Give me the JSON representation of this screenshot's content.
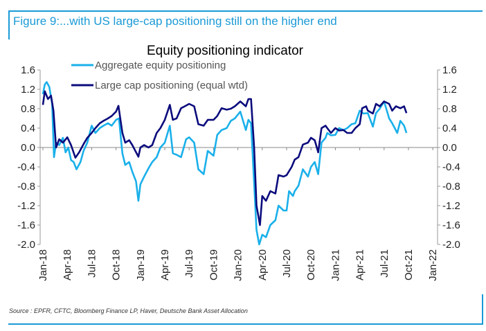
{
  "figure_title": "Figure 9:...with US large-cap positioning still on the higher end",
  "source": "Source : EPFR, CFTC, Bloomberg Finance LP, Haver, Deutsche Bank Asset Allocation",
  "chart_data": {
    "type": "line",
    "title": "Equity positioning indicator",
    "xlabel": "",
    "ylabel": "",
    "ylim": [
      -2.0,
      1.6
    ],
    "yticks": [
      "1.6",
      "1.2",
      "0.8",
      "0.4",
      "0.0",
      "-0.4",
      "-0.8",
      "-1.2",
      "-1.6",
      "-2.0"
    ],
    "ytick_values": [
      1.6,
      1.2,
      0.8,
      0.4,
      0.0,
      -0.4,
      -0.8,
      -1.2,
      -1.6,
      -2.0
    ],
    "xlim": [
      "2018-01-01",
      "2022-01-01"
    ],
    "xticks": [
      "Jan-18",
      "Apr-18",
      "Jul-18",
      "Oct-18",
      "Jan-19",
      "Apr-19",
      "Jul-19",
      "Oct-19",
      "Jan-20",
      "Apr-20",
      "Jul-20",
      "Oct-20",
      "Jan-21",
      "Apr-21",
      "Jul-21",
      "Oct-21",
      "Jan-22"
    ],
    "legend_position": "top-left",
    "grid": false,
    "series": [
      {
        "name": "Aggregate equity positioning",
        "color": "#1ab0ea",
        "points": [
          [
            "2018-01-01",
            1.1
          ],
          [
            "2018-01-08",
            1.3
          ],
          [
            "2018-01-15",
            1.35
          ],
          [
            "2018-01-25",
            1.25
          ],
          [
            "2018-02-05",
            0.9
          ],
          [
            "2018-02-12",
            -0.2
          ],
          [
            "2018-02-20",
            0.1
          ],
          [
            "2018-03-01",
            0.05
          ],
          [
            "2018-03-15",
            0.2
          ],
          [
            "2018-03-25",
            -0.1
          ],
          [
            "2018-04-05",
            0.0
          ],
          [
            "2018-04-15",
            -0.26
          ],
          [
            "2018-04-25",
            -0.3
          ],
          [
            "2018-05-05",
            -0.45
          ],
          [
            "2018-05-20",
            -0.3
          ],
          [
            "2018-06-01",
            -0.07
          ],
          [
            "2018-06-15",
            0.1
          ],
          [
            "2018-07-01",
            0.45
          ],
          [
            "2018-07-15",
            0.3
          ],
          [
            "2018-08-01",
            0.4
          ],
          [
            "2018-08-15",
            0.45
          ],
          [
            "2018-09-01",
            0.5
          ],
          [
            "2018-09-15",
            0.45
          ],
          [
            "2018-10-01",
            0.57
          ],
          [
            "2018-10-12",
            0.6
          ],
          [
            "2018-10-25",
            -0.12
          ],
          [
            "2018-11-05",
            -0.36
          ],
          [
            "2018-11-20",
            -0.3
          ],
          [
            "2018-12-01",
            -0.5
          ],
          [
            "2018-12-15",
            -0.7
          ],
          [
            "2018-12-24",
            -1.1
          ],
          [
            "2019-01-01",
            -0.76
          ],
          [
            "2019-01-15",
            -0.6
          ],
          [
            "2019-02-01",
            -0.43
          ],
          [
            "2019-02-15",
            -0.3
          ],
          [
            "2019-03-01",
            -0.2
          ],
          [
            "2019-03-15",
            0.0
          ],
          [
            "2019-04-01",
            0.1
          ],
          [
            "2019-04-20",
            0.45
          ],
          [
            "2019-05-01",
            -0.12
          ],
          [
            "2019-05-15",
            -0.15
          ],
          [
            "2019-06-01",
            -0.2
          ],
          [
            "2019-06-20",
            0.17
          ],
          [
            "2019-07-01",
            0.21
          ],
          [
            "2019-07-20",
            0.1
          ],
          [
            "2019-08-05",
            -0.45
          ],
          [
            "2019-08-25",
            -0.55
          ],
          [
            "2019-09-10",
            -0.07
          ],
          [
            "2019-10-01",
            -0.17
          ],
          [
            "2019-10-15",
            0.26
          ],
          [
            "2019-11-01",
            0.36
          ],
          [
            "2019-11-20",
            0.4
          ],
          [
            "2019-12-05",
            0.55
          ],
          [
            "2019-12-20",
            0.6
          ],
          [
            "2020-01-10",
            0.74
          ],
          [
            "2020-01-31",
            0.36
          ],
          [
            "2020-02-10",
            0.57
          ],
          [
            "2020-02-20",
            0.5
          ],
          [
            "2020-03-01",
            -0.74
          ],
          [
            "2020-03-10",
            -1.7
          ],
          [
            "2020-03-20",
            -2.0
          ],
          [
            "2020-04-01",
            -1.8
          ],
          [
            "2020-04-15",
            -1.85
          ],
          [
            "2020-05-01",
            -1.6
          ],
          [
            "2020-05-20",
            -1.5
          ],
          [
            "2020-06-01",
            -1.2
          ],
          [
            "2020-06-20",
            -1.3
          ],
          [
            "2020-07-01",
            -1.3
          ],
          [
            "2020-07-10",
            -0.9
          ],
          [
            "2020-07-25",
            -1.0
          ],
          [
            "2020-08-01",
            -0.9
          ],
          [
            "2020-08-15",
            -0.79
          ],
          [
            "2020-09-01",
            -0.45
          ],
          [
            "2020-09-20",
            -0.6
          ],
          [
            "2020-10-01",
            -0.4
          ],
          [
            "2020-10-15",
            -0.3
          ],
          [
            "2020-10-28",
            -0.55
          ],
          [
            "2020-11-10",
            0.1
          ],
          [
            "2020-11-25",
            0.2
          ],
          [
            "2020-12-01",
            0.3
          ],
          [
            "2020-12-15",
            0.25
          ],
          [
            "2021-01-01",
            0.26
          ],
          [
            "2021-01-15",
            0.4
          ],
          [
            "2021-02-01",
            0.36
          ],
          [
            "2021-02-15",
            0.4
          ],
          [
            "2021-03-01",
            0.48
          ],
          [
            "2021-03-15",
            0.5
          ],
          [
            "2021-04-01",
            0.76
          ],
          [
            "2021-04-15",
            0.7
          ],
          [
            "2021-05-01",
            0.71
          ],
          [
            "2021-05-20",
            0.43
          ],
          [
            "2021-06-01",
            0.71
          ],
          [
            "2021-06-15",
            0.8
          ],
          [
            "2021-07-01",
            0.95
          ],
          [
            "2021-07-20",
            0.6
          ],
          [
            "2021-08-01",
            0.5
          ],
          [
            "2021-08-20",
            0.3
          ],
          [
            "2021-09-01",
            0.55
          ],
          [
            "2021-09-15",
            0.45
          ],
          [
            "2021-09-24",
            0.3
          ]
        ]
      },
      {
        "name": "Large cap positioning (equal wtd)",
        "color": "#0b0b7d",
        "points": [
          [
            "2018-01-01",
            0.88
          ],
          [
            "2018-01-08",
            1.16
          ],
          [
            "2018-01-20",
            1.0
          ],
          [
            "2018-02-01",
            1.07
          ],
          [
            "2018-02-10",
            0.76
          ],
          [
            "2018-02-20",
            0.0
          ],
          [
            "2018-03-01",
            0.17
          ],
          [
            "2018-03-15",
            0.1
          ],
          [
            "2018-04-01",
            0.21
          ],
          [
            "2018-04-15",
            0.05
          ],
          [
            "2018-05-01",
            -0.21
          ],
          [
            "2018-05-15",
            -0.1
          ],
          [
            "2018-06-01",
            0.07
          ],
          [
            "2018-06-15",
            0.2
          ],
          [
            "2018-07-01",
            0.3
          ],
          [
            "2018-07-15",
            0.4
          ],
          [
            "2018-08-01",
            0.5
          ],
          [
            "2018-08-15",
            0.55
          ],
          [
            "2018-09-01",
            0.6
          ],
          [
            "2018-09-15",
            0.65
          ],
          [
            "2018-10-01",
            0.74
          ],
          [
            "2018-10-10",
            0.86
          ],
          [
            "2018-10-25",
            0.3
          ],
          [
            "2018-11-05",
            0.1
          ],
          [
            "2018-11-20",
            0.15
          ],
          [
            "2018-12-01",
            0.05
          ],
          [
            "2018-12-24",
            -0.19
          ],
          [
            "2019-01-01",
            0.0
          ],
          [
            "2019-01-15",
            0.05
          ],
          [
            "2019-02-01",
            0.0
          ],
          [
            "2019-02-15",
            0.05
          ],
          [
            "2019-03-01",
            0.3
          ],
          [
            "2019-03-15",
            0.4
          ],
          [
            "2019-04-01",
            0.57
          ],
          [
            "2019-04-20",
            0.88
          ],
          [
            "2019-05-01",
            0.57
          ],
          [
            "2019-05-15",
            0.6
          ],
          [
            "2019-06-01",
            0.81
          ],
          [
            "2019-06-15",
            0.85
          ],
          [
            "2019-07-01",
            0.9
          ],
          [
            "2019-07-20",
            0.85
          ],
          [
            "2019-08-05",
            0.48
          ],
          [
            "2019-08-25",
            0.45
          ],
          [
            "2019-09-10",
            0.57
          ],
          [
            "2019-10-01",
            0.57
          ],
          [
            "2019-10-15",
            0.65
          ],
          [
            "2019-11-01",
            0.81
          ],
          [
            "2019-11-20",
            0.78
          ],
          [
            "2019-12-05",
            0.8
          ],
          [
            "2019-12-20",
            0.85
          ],
          [
            "2020-01-10",
            0.95
          ],
          [
            "2020-01-31",
            0.85
          ],
          [
            "2020-02-10",
            1.0
          ],
          [
            "2020-02-20",
            1.0
          ],
          [
            "2020-03-01",
            0.0
          ],
          [
            "2020-03-10",
            -1.2
          ],
          [
            "2020-03-23",
            -1.6
          ],
          [
            "2020-04-01",
            -1.0
          ],
          [
            "2020-04-15",
            -1.1
          ],
          [
            "2020-05-01",
            -0.9
          ],
          [
            "2020-05-20",
            -0.95
          ],
          [
            "2020-06-01",
            -0.57
          ],
          [
            "2020-06-20",
            -0.6
          ],
          [
            "2020-07-01",
            -0.57
          ],
          [
            "2020-07-20",
            -0.4
          ],
          [
            "2020-08-01",
            -0.25
          ],
          [
            "2020-08-15",
            -0.2
          ],
          [
            "2020-09-01",
            0.06
          ],
          [
            "2020-09-20",
            0.1
          ],
          [
            "2020-10-01",
            0.2
          ],
          [
            "2020-10-15",
            0.15
          ],
          [
            "2020-10-28",
            -0.1
          ],
          [
            "2020-11-10",
            0.4
          ],
          [
            "2020-11-25",
            0.45
          ],
          [
            "2020-12-01",
            0.4
          ],
          [
            "2020-12-15",
            0.3
          ],
          [
            "2021-01-01",
            0.4
          ],
          [
            "2021-01-15",
            0.35
          ],
          [
            "2021-02-01",
            0.36
          ],
          [
            "2021-02-15",
            0.3
          ],
          [
            "2021-03-01",
            0.3
          ],
          [
            "2021-03-15",
            0.4
          ],
          [
            "2021-04-01",
            0.48
          ],
          [
            "2021-04-10",
            0.81
          ],
          [
            "2021-04-25",
            0.85
          ],
          [
            "2021-05-01",
            0.76
          ],
          [
            "2021-05-20",
            0.7
          ],
          [
            "2021-06-01",
            0.9
          ],
          [
            "2021-06-15",
            0.85
          ],
          [
            "2021-07-01",
            0.95
          ],
          [
            "2021-07-20",
            0.9
          ],
          [
            "2021-08-01",
            0.76
          ],
          [
            "2021-08-15",
            0.85
          ],
          [
            "2021-09-01",
            0.81
          ],
          [
            "2021-09-15",
            0.85
          ],
          [
            "2021-09-24",
            0.71
          ]
        ]
      }
    ]
  }
}
